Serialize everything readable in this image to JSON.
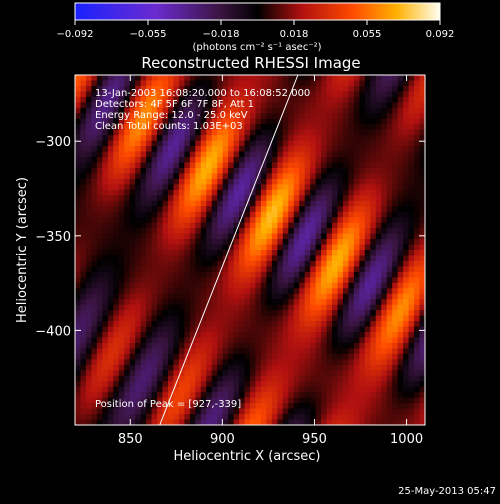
{
  "colorbar": {
    "ticks": [
      "−0.092",
      "−0.055",
      "−0.018",
      "0.018",
      "0.055",
      "0.092"
    ],
    "unit_label": "(photons cm⁻² s⁻¹ asec⁻²)",
    "range": [
      -0.092,
      0.092
    ]
  },
  "chart_data": {
    "type": "heatmap",
    "title": "Reconstructed RHESSI Image",
    "xlabel": "Heliocentric X (arcsec)",
    "ylabel": "Heliocentric Y (arcsec)",
    "xlim": [
      820,
      1010
    ],
    "ylim": [
      -450,
      -265
    ],
    "x_ticks": [
      850,
      900,
      950,
      1000
    ],
    "y_ticks": [
      -300,
      -350,
      -400
    ],
    "value_range": [
      -0.092,
      0.092
    ],
    "annotations": {
      "time": "13-Jan-2003 16:08:20.000 to 16:08:52.000",
      "detectors": "Detectors: 4F 5F 6F 7F 8F, Att 1",
      "energy": "Energy Range: 12.0 - 25.0 keV",
      "clean": "Clean   Total counts: 1.03E+03",
      "peak": "Position of Peak = [927,-339]"
    },
    "peak": [
      927,
      -339
    ],
    "limb": [
      [
        866,
        -450
      ],
      [
        941,
        -265
      ]
    ]
  },
  "footer": {
    "date": "25-May-2013 05:47"
  }
}
